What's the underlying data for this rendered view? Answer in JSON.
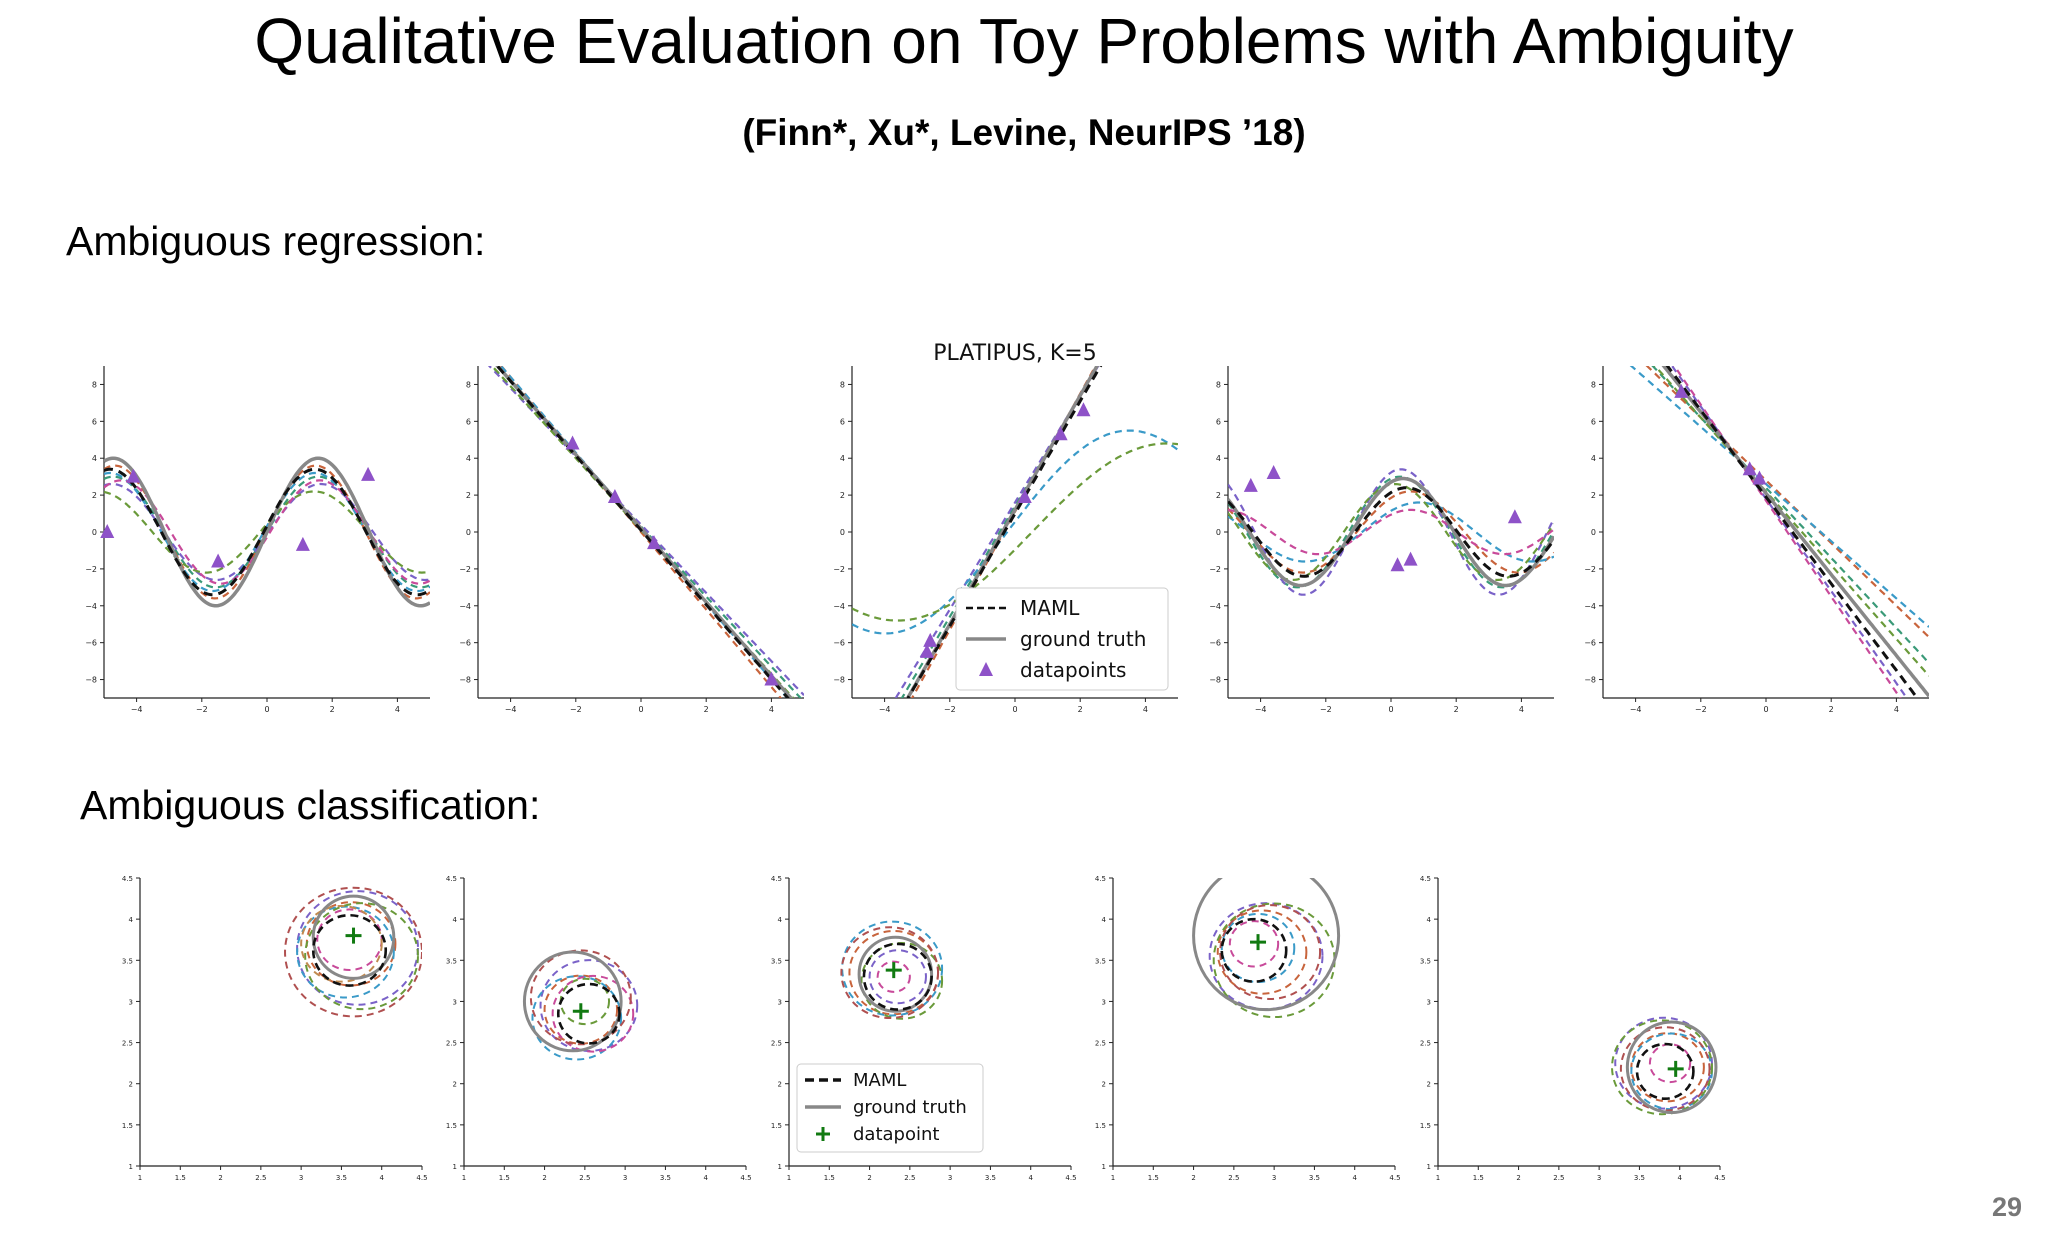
{
  "slide": {
    "title": "Qualitative Evaluation on Toy Problems with Ambiguity",
    "subtitle": "(Finn*, Xu*, Levine, NeurIPS ’18)",
    "section_regression": "Ambiguous regression:",
    "section_classification": "Ambiguous classification:",
    "page_number": "29"
  },
  "colors": {
    "maml": "#111111",
    "ground_truth": "#888888",
    "datapoints": "#8e52c8",
    "datapoint_plus": "#117a11",
    "samples": [
      "#3a9a78",
      "#c8643c",
      "#7a62c8",
      "#3a9ac8",
      "#6a9a3a",
      "#c84a9a",
      "#b05050",
      "#c08a50"
    ]
  },
  "chart_data": [
    {
      "type": "line",
      "title": "",
      "xlim": [
        -5,
        5
      ],
      "ylim": [
        -9,
        9
      ],
      "xticks": [
        -4,
        -2,
        0,
        2,
        4
      ],
      "yticks": [
        -8,
        -6,
        -4,
        -2,
        0,
        2,
        4,
        6,
        8
      ],
      "ground_truth": {
        "kind": "sin",
        "amp": 4.0,
        "freq": 1.0,
        "phase": 0.0
      },
      "maml": {
        "kind": "sin",
        "amp": 3.4,
        "freq": 1.0,
        "phase": 0.1
      },
      "samples": [
        {
          "kind": "sin",
          "amp": 3.0,
          "freq": 1.0,
          "phase": 0.0
        },
        {
          "kind": "sin",
          "amp": 3.6,
          "freq": 1.02,
          "phase": 0.05
        },
        {
          "kind": "sin",
          "amp": 2.6,
          "freq": 0.98,
          "phase": -0.05
        },
        {
          "kind": "sin",
          "amp": 3.2,
          "freq": 1.0,
          "phase": 0.1
        },
        {
          "kind": "sin",
          "amp": 2.2,
          "freq": 0.95,
          "phase": 0.2
        },
        {
          "kind": "sin",
          "amp": 2.8,
          "freq": 1.03,
          "phase": -0.1
        }
      ],
      "points": [
        [
          -4.9,
          0.0
        ],
        [
          -4.1,
          3.0
        ],
        [
          -1.5,
          -1.6
        ],
        [
          1.1,
          -0.7
        ],
        [
          3.1,
          3.1
        ]
      ]
    },
    {
      "type": "line",
      "title": "",
      "xlim": [
        -5,
        5
      ],
      "ylim": [
        -9,
        9
      ],
      "xticks": [
        -4,
        -2,
        0,
        2,
        4
      ],
      "yticks": [
        -8,
        -6,
        -4,
        -2,
        0,
        2,
        4,
        6,
        8
      ],
      "ground_truth": {
        "kind": "lin",
        "slope": -2.0,
        "intercept": 0.2
      },
      "maml": {
        "kind": "lin",
        "slope": -2.02,
        "intercept": 0.1
      },
      "samples": [
        {
          "kind": "lin",
          "slope": -1.9,
          "intercept": 0.3
        },
        {
          "kind": "lin",
          "slope": -2.1,
          "intercept": 0.0
        },
        {
          "kind": "lin",
          "slope": -1.85,
          "intercept": 0.4
        },
        {
          "kind": "lin",
          "slope": -2.05,
          "intercept": 0.2
        },
        {
          "kind": "lin",
          "slope": -1.95,
          "intercept": 0.1
        }
      ],
      "points": [
        [
          -2.1,
          4.8
        ],
        [
          -0.8,
          1.9
        ],
        [
          0.4,
          -0.6
        ],
        [
          4.0,
          -8.0
        ]
      ]
    },
    {
      "type": "line",
      "title": "PLATIPUS, K=5",
      "xlim": [
        -5,
        5
      ],
      "ylim": [
        -9,
        9
      ],
      "xticks": [
        -4,
        -2,
        0,
        2,
        4
      ],
      "yticks": [
        -8,
        -6,
        -4,
        -2,
        0,
        2,
        4,
        6,
        8
      ],
      "ground_truth": {
        "kind": "lin",
        "slope": 3.1,
        "intercept": 1.2
      },
      "maml": {
        "kind": "lin",
        "slope": 3.05,
        "intercept": 1.0
      },
      "samples": [
        {
          "kind": "lin",
          "slope": 3.0,
          "intercept": 1.4
        },
        {
          "kind": "lin",
          "slope": 3.2,
          "intercept": 1.1
        },
        {
          "kind": "lin",
          "slope": 2.9,
          "intercept": 1.6
        },
        {
          "kind": "sin",
          "amp": 5.5,
          "freq": 0.42,
          "phase": 0.1
        },
        {
          "kind": "sin",
          "amp": 4.8,
          "freq": 0.38,
          "phase": -0.2
        }
      ],
      "points": [
        [
          -2.7,
          -6.5
        ],
        [
          -2.6,
          -5.9
        ],
        [
          0.3,
          1.9
        ],
        [
          1.4,
          5.3
        ],
        [
          2.1,
          6.6
        ]
      ],
      "legend": {
        "placement": "lower-right",
        "entries": [
          "MAML",
          "ground truth",
          "datapoints"
        ]
      }
    },
    {
      "type": "line",
      "title": "",
      "xlim": [
        -5,
        5
      ],
      "ylim": [
        -9,
        9
      ],
      "xticks": [
        -4,
        -2,
        0,
        2,
        4
      ],
      "yticks": [
        -8,
        -6,
        -4,
        -2,
        0,
        2,
        4,
        6,
        8
      ],
      "ground_truth": {
        "kind": "sin",
        "amp": 2.9,
        "freq": 1.0,
        "phase": 1.2
      },
      "maml": {
        "kind": "sin",
        "amp": 2.4,
        "freq": 1.0,
        "phase": 1.1
      },
      "samples": [
        {
          "kind": "sin",
          "amp": 3.0,
          "freq": 1.0,
          "phase": 1.3
        },
        {
          "kind": "sin",
          "amp": 2.2,
          "freq": 0.95,
          "phase": 1.0
        },
        {
          "kind": "sin",
          "amp": 3.4,
          "freq": 1.05,
          "phase": 1.25
        },
        {
          "kind": "sin",
          "amp": 1.6,
          "freq": 0.9,
          "phase": 0.8
        },
        {
          "kind": "sin",
          "amp": 2.6,
          "freq": 1.0,
          "phase": 1.45
        },
        {
          "kind": "sin",
          "amp": 1.2,
          "freq": 1.1,
          "phase": 0.9
        }
      ],
      "points": [
        [
          -4.3,
          2.5
        ],
        [
          -3.6,
          3.2
        ],
        [
          0.2,
          -1.8
        ],
        [
          0.6,
          -1.5
        ],
        [
          3.8,
          0.8
        ]
      ]
    },
    {
      "type": "line",
      "title": "",
      "xlim": [
        -5,
        5
      ],
      "ylim": [
        -9,
        9
      ],
      "xticks": [
        -4,
        -2,
        0,
        2,
        4
      ],
      "yticks": [
        -8,
        -6,
        -4,
        -2,
        0,
        2,
        4,
        6,
        8
      ],
      "ground_truth": {
        "kind": "lin",
        "slope": -2.2,
        "intercept": 2.1
      },
      "maml": {
        "kind": "lin",
        "slope": -2.35,
        "intercept": 1.9
      },
      "samples": [
        {
          "kind": "lin",
          "slope": -1.9,
          "intercept": 2.4
        },
        {
          "kind": "lin",
          "slope": -1.7,
          "intercept": 2.8
        },
        {
          "kind": "lin",
          "slope": -2.5,
          "intercept": 1.8
        },
        {
          "kind": "lin",
          "slope": -1.55,
          "intercept": 2.6
        },
        {
          "kind": "lin",
          "slope": -2.0,
          "intercept": 2.2
        },
        {
          "kind": "lin",
          "slope": -2.6,
          "intercept": 1.7
        }
      ],
      "points": [
        [
          -2.6,
          7.6
        ],
        [
          -0.5,
          3.4
        ],
        [
          -0.2,
          2.9
        ]
      ]
    },
    {
      "type": "scatter",
      "title": "",
      "xlim": [
        1.0,
        4.5
      ],
      "ylim": [
        1.0,
        4.5
      ],
      "xticks": [
        1.0,
        1.5,
        2.0,
        2.5,
        3.0,
        3.5,
        4.0,
        4.5
      ],
      "yticks": [
        1.0,
        1.5,
        2.0,
        2.5,
        3.0,
        3.5,
        4.0,
        4.5
      ],
      "ground_truth": {
        "cx": 3.65,
        "cy": 3.78,
        "r": 0.5
      },
      "maml": {
        "cx": 3.6,
        "cy": 3.62,
        "r": 0.45
      },
      "samples": [
        [
          3.62,
          3.7,
          0.55
        ],
        [
          3.7,
          3.65,
          0.75
        ],
        [
          3.55,
          3.6,
          0.6
        ],
        [
          3.75,
          3.55,
          0.7
        ],
        [
          3.6,
          3.75,
          0.4
        ],
        [
          3.65,
          3.6,
          0.85
        ],
        [
          3.5,
          3.7,
          0.5
        ]
      ],
      "point": [
        3.65,
        3.8
      ]
    },
    {
      "type": "scatter",
      "title": "",
      "xlim": [
        1.0,
        4.5
      ],
      "ylim": [
        1.0,
        4.5
      ],
      "xticks": [
        1.0,
        1.5,
        2.0,
        2.5,
        3.0,
        3.5,
        4.0,
        4.5
      ],
      "yticks": [
        1.0,
        1.5,
        2.0,
        2.5,
        3.0,
        3.5,
        4.0,
        4.5
      ],
      "ground_truth": {
        "cx": 2.35,
        "cy": 3.0,
        "r": 0.6
      },
      "maml": {
        "cx": 2.55,
        "cy": 2.85,
        "r": 0.38
      },
      "samples": [
        [
          2.45,
          2.9,
          0.45
        ],
        [
          2.55,
          2.95,
          0.6
        ],
        [
          2.4,
          2.8,
          0.55
        ],
        [
          2.5,
          3.0,
          0.3
        ],
        [
          2.6,
          2.85,
          0.5
        ],
        [
          2.45,
          3.05,
          0.62
        ]
      ],
      "point": [
        2.45,
        2.88
      ]
    },
    {
      "type": "scatter",
      "title": "",
      "xlim": [
        1.0,
        4.5
      ],
      "ylim": [
        1.0,
        4.5
      ],
      "xticks": [
        1.0,
        1.5,
        2.0,
        2.5,
        3.0,
        3.5,
        4.0,
        4.5
      ],
      "yticks": [
        1.0,
        1.5,
        2.0,
        2.5,
        3.0,
        3.5,
        4.0,
        4.5
      ],
      "ground_truth": {
        "cx": 2.32,
        "cy": 3.33,
        "r": 0.45
      },
      "maml": {
        "cx": 2.35,
        "cy": 3.3,
        "r": 0.42
      },
      "samples": [
        [
          2.3,
          3.35,
          0.55
        ],
        [
          2.35,
          3.3,
          0.35
        ],
        [
          2.28,
          3.4,
          0.62
        ],
        [
          2.4,
          3.25,
          0.5
        ],
        [
          2.3,
          3.3,
          0.2
        ],
        [
          2.25,
          3.35,
          0.6
        ]
      ],
      "point": [
        2.3,
        3.38
      ],
      "legend": {
        "placement": "lower-left",
        "entries": [
          "MAML",
          "ground truth",
          "datapoint"
        ]
      }
    },
    {
      "type": "scatter",
      "title": "",
      "xlim": [
        1.0,
        4.5
      ],
      "ylim": [
        1.0,
        4.5
      ],
      "xticks": [
        1.0,
        1.5,
        2.0,
        2.5,
        3.0,
        3.5,
        4.0,
        4.5
      ],
      "yticks": [
        1.0,
        1.5,
        2.0,
        2.5,
        3.0,
        3.5,
        4.0,
        4.5
      ],
      "ground_truth": {
        "cx": 2.9,
        "cy": 3.8,
        "r": 0.9
      },
      "maml": {
        "cx": 2.75,
        "cy": 3.62,
        "r": 0.4
      },
      "samples": [
        [
          2.85,
          3.6,
          0.55
        ],
        [
          2.9,
          3.55,
          0.7
        ],
        [
          2.8,
          3.65,
          0.45
        ],
        [
          3.0,
          3.5,
          0.75
        ],
        [
          2.75,
          3.7,
          0.3
        ],
        [
          2.95,
          3.6,
          0.62
        ]
      ],
      "point": [
        2.8,
        3.72
      ]
    },
    {
      "type": "scatter",
      "title": "",
      "xlim": [
        1.0,
        4.5
      ],
      "ylim": [
        1.0,
        4.5
      ],
      "xticks": [
        1.0,
        1.5,
        2.0,
        2.5,
        3.0,
        3.5,
        4.0,
        4.5
      ],
      "yticks": [
        1.0,
        1.5,
        2.0,
        2.5,
        3.0,
        3.5,
        4.0,
        4.5
      ],
      "ground_truth": {
        "cx": 3.9,
        "cy": 2.2,
        "r": 0.55
      },
      "maml": {
        "cx": 3.82,
        "cy": 2.15,
        "r": 0.35
      },
      "samples": [
        [
          3.85,
          2.2,
          0.45
        ],
        [
          3.8,
          2.25,
          0.6
        ],
        [
          3.9,
          2.15,
          0.5
        ],
        [
          3.78,
          2.2,
          0.62
        ],
        [
          3.88,
          2.25,
          0.25
        ],
        [
          3.82,
          2.18,
          0.55
        ]
      ],
      "point": [
        3.95,
        2.18
      ]
    }
  ]
}
